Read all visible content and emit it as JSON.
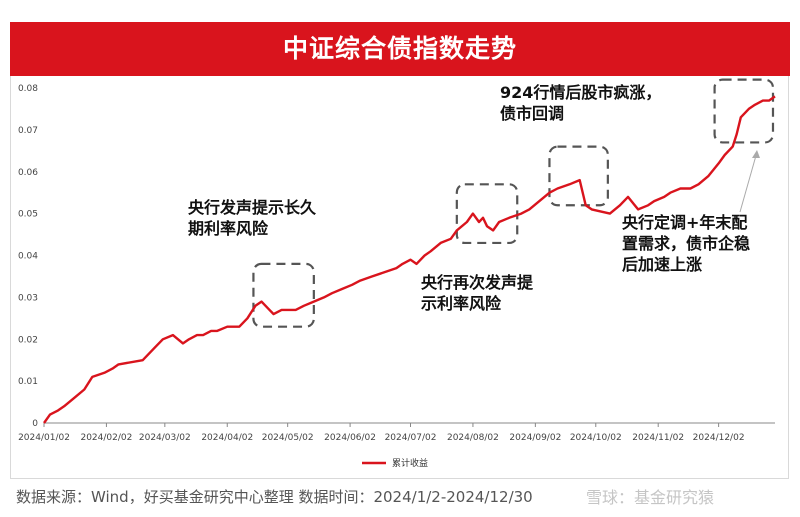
{
  "title": "中证综合债指数走势",
  "footer": "数据来源：Wind，好买基金研究中心整理 数据时间：2024/1/2-2024/12/30",
  "watermark": "雪球：基金研究猿",
  "colors": {
    "banner": "#d9141d",
    "line": "#d9141d",
    "box": "#555555"
  },
  "chart_data": {
    "type": "line",
    "title": "中证综合债指数走势",
    "xlabel": "",
    "ylabel": "",
    "ylim": [
      0,
      0.08
    ],
    "yticks": [
      "0",
      "0.01",
      "0.02",
      "0.03",
      "0.04",
      "0.05",
      "0.06",
      "0.07",
      "0.08"
    ],
    "xticks": [
      "2024/01/02",
      "2024/02/02",
      "2024/03/02",
      "2024/04/02",
      "2024/05/02",
      "2024/06/02",
      "2024/07/02",
      "2024/08/02",
      "2024/09/02",
      "2024/10/02",
      "2024/11/02",
      "2024/12/02"
    ],
    "legend": {
      "position": "bottom",
      "label": "累计收益"
    },
    "series": [
      {
        "name": "累计收益",
        "x": [
          "2024-01-02",
          "2024-01-05",
          "2024-01-09",
          "2024-01-12",
          "2024-01-17",
          "2024-01-22",
          "2024-01-26",
          "2024-02-01",
          "2024-02-05",
          "2024-02-08",
          "2024-02-20",
          "2024-02-26",
          "2024-03-01",
          "2024-03-06",
          "2024-03-11",
          "2024-03-14",
          "2024-03-18",
          "2024-03-21",
          "2024-03-25",
          "2024-03-28",
          "2024-04-02",
          "2024-04-08",
          "2024-04-12",
          "2024-04-16",
          "2024-04-19",
          "2024-04-23",
          "2024-04-25",
          "2024-04-29",
          "2024-05-06",
          "2024-05-10",
          "2024-05-15",
          "2024-05-20",
          "2024-05-24",
          "2024-05-29",
          "2024-06-03",
          "2024-06-07",
          "2024-06-13",
          "2024-06-19",
          "2024-06-25",
          "2024-06-28",
          "2024-07-02",
          "2024-07-05",
          "2024-07-09",
          "2024-07-12",
          "2024-07-17",
          "2024-07-22",
          "2024-07-25",
          "2024-07-30",
          "2024-08-02",
          "2024-08-05",
          "2024-08-07",
          "2024-08-09",
          "2024-08-12",
          "2024-08-15",
          "2024-08-20",
          "2024-08-26",
          "2024-08-30",
          "2024-09-04",
          "2024-09-09",
          "2024-09-13",
          "2024-09-19",
          "2024-09-24",
          "2024-09-26",
          "2024-09-27",
          "2024-09-30",
          "2024-10-09",
          "2024-10-14",
          "2024-10-18",
          "2024-10-23",
          "2024-10-28",
          "2024-10-31",
          "2024-11-05",
          "2024-11-08",
          "2024-11-13",
          "2024-11-18",
          "2024-11-22",
          "2024-11-27",
          "2024-12-02",
          "2024-12-05",
          "2024-12-09",
          "2024-12-11",
          "2024-12-13",
          "2024-12-17",
          "2024-12-20",
          "2024-12-24",
          "2024-12-27",
          "2024-12-30"
        ],
        "values": [
          0.0,
          0.002,
          0.003,
          0.004,
          0.006,
          0.008,
          0.011,
          0.012,
          0.013,
          0.014,
          0.015,
          0.018,
          0.02,
          0.021,
          0.019,
          0.02,
          0.021,
          0.021,
          0.022,
          0.022,
          0.023,
          0.023,
          0.025,
          0.028,
          0.029,
          0.027,
          0.026,
          0.027,
          0.027,
          0.028,
          0.029,
          0.03,
          0.031,
          0.032,
          0.033,
          0.034,
          0.035,
          0.036,
          0.037,
          0.038,
          0.039,
          0.038,
          0.04,
          0.041,
          0.043,
          0.044,
          0.046,
          0.048,
          0.05,
          0.048,
          0.049,
          0.047,
          0.046,
          0.048,
          0.049,
          0.05,
          0.051,
          0.053,
          0.055,
          0.056,
          0.057,
          0.058,
          0.054,
          0.052,
          0.051,
          0.05,
          0.052,
          0.054,
          0.051,
          0.052,
          0.053,
          0.054,
          0.055,
          0.056,
          0.056,
          0.057,
          0.059,
          0.062,
          0.064,
          0.066,
          0.069,
          0.073,
          0.075,
          0.076,
          0.077,
          0.077,
          0.078
        ]
      }
    ],
    "annotations": [
      {
        "lines": [
          "央行发声提示长久",
          "期利率风险"
        ]
      },
      {
        "lines": [
          "央行再次发声提",
          "示利率风险"
        ]
      },
      {
        "lines": [
          "924行情后股市疯涨，",
          "债市回调"
        ]
      },
      {
        "lines": [
          "央行定调+年末配",
          "置需求，债市企稳",
          "后加速上涨"
        ]
      }
    ]
  }
}
